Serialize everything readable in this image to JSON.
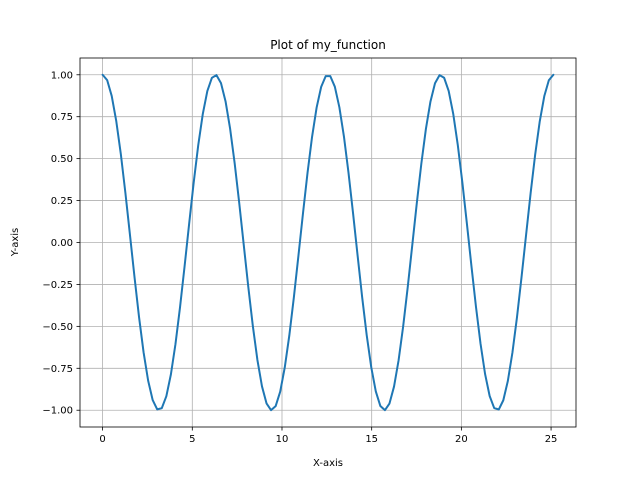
{
  "chart_data": {
    "type": "line",
    "title": "Plot of my_function",
    "xlabel": "X-axis",
    "ylabel": "Y-axis",
    "xlim": [
      -1.26,
      26.39
    ],
    "ylim": [
      -1.1,
      1.1
    ],
    "grid": true,
    "x_ticks": [
      0,
      5,
      10,
      15,
      20,
      25
    ],
    "x_tick_labels": [
      "0",
      "5",
      "10",
      "15",
      "20",
      "25"
    ],
    "y_ticks": [
      1.0,
      0.75,
      0.5,
      0.25,
      0.0,
      -0.25,
      -0.5,
      -0.75,
      -1.0
    ],
    "y_tick_labels": [
      "1.00",
      "0.75",
      "0.50",
      "0.25",
      "0.00",
      "−0.25",
      "−0.50",
      "−0.75",
      "−1.00"
    ],
    "series": [
      {
        "function": "cos(x)",
        "x_start": 0,
        "x_end": 25.13,
        "num_points": 100,
        "color": "#1f77b4"
      }
    ]
  }
}
